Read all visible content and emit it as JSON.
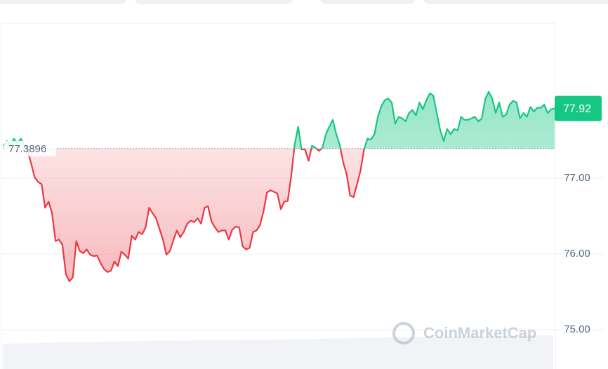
{
  "chart_data": {
    "type": "line",
    "baseline": 77.3896,
    "watermark": "CoinMarketCap",
    "ylim": [
      74.5,
      79.0
    ],
    "yticks": [
      {
        "value": 75,
        "label": "75.00"
      },
      {
        "value": 76,
        "label": "76.00"
      },
      {
        "value": 77,
        "label": "77.00"
      }
    ],
    "grid": true,
    "up_color": "#16c784",
    "down_color": "#ea3943",
    "values": [
      77.43,
      77.49,
      77.44,
      77.52,
      77.46,
      77.52,
      77.44,
      77.35,
      77.19,
      77.01,
      76.95,
      76.92,
      76.61,
      76.69,
      76.54,
      76.17,
      76.19,
      76.12,
      75.73,
      75.64,
      75.69,
      76.17,
      76.04,
      76.01,
      76.06,
      75.99,
      75.97,
      75.98,
      75.88,
      75.8,
      75.76,
      75.78,
      75.9,
      75.84,
      76.03,
      75.99,
      75.94,
      76.24,
      76.19,
      76.29,
      76.26,
      76.35,
      76.61,
      76.54,
      76.47,
      76.33,
      76.19,
      75.99,
      76.04,
      76.18,
      76.31,
      76.22,
      76.29,
      76.4,
      76.44,
      76.42,
      76.47,
      76.4,
      76.61,
      76.63,
      76.43,
      76.35,
      76.29,
      76.31,
      76.31,
      76.19,
      76.32,
      76.36,
      76.35,
      76.1,
      76.06,
      76.08,
      76.29,
      76.31,
      76.38,
      76.56,
      76.81,
      76.84,
      76.82,
      76.8,
      76.59,
      76.69,
      76.7,
      77.03,
      77.44,
      77.68,
      77.38,
      77.38,
      77.23,
      77.43,
      77.4,
      77.36,
      77.4,
      77.58,
      77.68,
      77.77,
      77.58,
      77.44,
      77.21,
      77.05,
      76.77,
      76.75,
      76.92,
      77.1,
      77.38,
      77.52,
      77.51,
      77.58,
      77.81,
      77.95,
      78.03,
      78.05,
      78.0,
      77.72,
      77.81,
      77.79,
      77.75,
      77.86,
      77.9,
      77.83,
      78.0,
      77.91,
      78.03,
      78.12,
      78.09,
      77.86,
      77.63,
      77.49,
      77.65,
      77.58,
      77.65,
      77.63,
      77.81,
      77.77,
      77.77,
      77.79,
      77.81,
      77.75,
      77.79,
      78.05,
      78.14,
      78.05,
      77.86,
      78.0,
      77.81,
      77.84,
      77.97,
      78.02,
      78.0,
      77.79,
      77.86,
      77.81,
      77.94,
      77.88,
      77.93,
      77.93,
      77.97,
      77.86,
      77.91,
      77.92
    ]
  }
}
